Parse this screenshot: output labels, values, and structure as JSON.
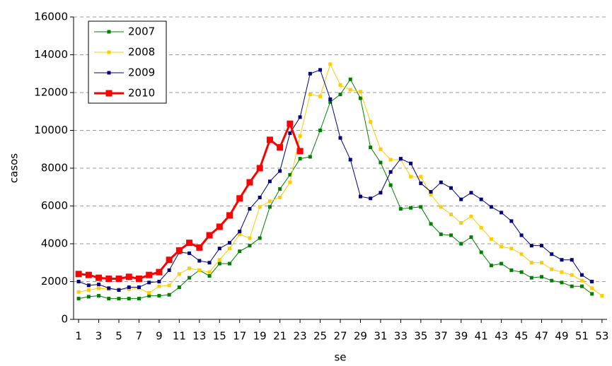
{
  "chart_data": {
    "type": "line",
    "x_label": "se",
    "y_label": "casos",
    "x": [
      1,
      2,
      3,
      4,
      5,
      6,
      7,
      8,
      9,
      10,
      11,
      12,
      13,
      14,
      15,
      16,
      17,
      18,
      19,
      20,
      21,
      22,
      23,
      24,
      25,
      26,
      27,
      28,
      29,
      30,
      31,
      32,
      33,
      34,
      35,
      36,
      37,
      38,
      39,
      40,
      41,
      42,
      43,
      44,
      45,
      46,
      47,
      48,
      49,
      50,
      51,
      52,
      53
    ],
    "xlim": [
      0.5,
      53.5
    ],
    "xticks": [
      1,
      3,
      5,
      7,
      9,
      11,
      13,
      15,
      17,
      19,
      21,
      23,
      25,
      27,
      29,
      31,
      33,
      35,
      37,
      39,
      41,
      43,
      45,
      47,
      49,
      51,
      53
    ],
    "ylim": [
      0,
      16000
    ],
    "yticks": [
      0,
      2000,
      4000,
      6000,
      8000,
      10000,
      12000,
      14000,
      16000
    ],
    "grid": true,
    "legend": "upper left",
    "series": [
      {
        "name": "2007",
        "color": "#008000",
        "width": 1,
        "values": [
          1100,
          1200,
          1250,
          1100,
          1100,
          1100,
          1100,
          1250,
          1250,
          1300,
          1700,
          2200,
          2600,
          2300,
          2950,
          2950,
          3600,
          3900,
          4300,
          5950,
          6900,
          7650,
          8500,
          8600,
          10000,
          11500,
          11900,
          12700,
          11700,
          9100,
          8300,
          7100,
          5850,
          5900,
          5950,
          5050,
          4500,
          4450,
          4000,
          4350,
          3550,
          2850,
          2950,
          2600,
          2500,
          2200,
          2250,
          2050,
          1950,
          1750,
          1750,
          1350,
          null
        ]
      },
      {
        "name": "2008",
        "color": "#ffcc00",
        "width": 1,
        "values": [
          1450,
          1550,
          1650,
          1600,
          1600,
          1600,
          1650,
          1400,
          1750,
          1800,
          2400,
          2700,
          2600,
          2500,
          3150,
          3750,
          4500,
          4300,
          5950,
          6250,
          6450,
          7250,
          9700,
          11900,
          11800,
          13500,
          12400,
          12150,
          12050,
          10450,
          9000,
          8450,
          8450,
          7550,
          7550,
          6600,
          5950,
          5550,
          5100,
          5450,
          4850,
          4250,
          3850,
          3750,
          3450,
          3000,
          3000,
          2650,
          2500,
          2350,
          2050,
          1650,
          1250
        ]
      },
      {
        "name": "2009",
        "color": "#000080",
        "width": 1,
        "values": [
          2000,
          1800,
          1850,
          1650,
          1550,
          1700,
          1700,
          1950,
          2000,
          2600,
          3550,
          3500,
          3100,
          3000,
          3750,
          4050,
          4650,
          5850,
          6450,
          7300,
          7850,
          9850,
          10700,
          13000,
          13200,
          11650,
          9600,
          8450,
          6500,
          6400,
          6700,
          7800,
          8500,
          8250,
          7200,
          6750,
          7250,
          6950,
          6350,
          6700,
          6350,
          5950,
          5650,
          5200,
          4450,
          3900,
          3900,
          3450,
          3150,
          3150,
          2350,
          2000,
          null
        ]
      },
      {
        "name": "2010",
        "color": "#ff0000",
        "width": 3,
        "values": [
          2400,
          2350,
          2200,
          2150,
          2150,
          2250,
          2150,
          2350,
          2500,
          3150,
          3650,
          4050,
          3800,
          4450,
          4900,
          5500,
          6400,
          7250,
          8000,
          9500,
          9100,
          10350,
          8900,
          null,
          null,
          null,
          null,
          null,
          null,
          null,
          null,
          null,
          null,
          null,
          null,
          null,
          null,
          null,
          null,
          null,
          null,
          null,
          null,
          null,
          null,
          null,
          null,
          null,
          null,
          null,
          null,
          null,
          null
        ]
      }
    ]
  }
}
